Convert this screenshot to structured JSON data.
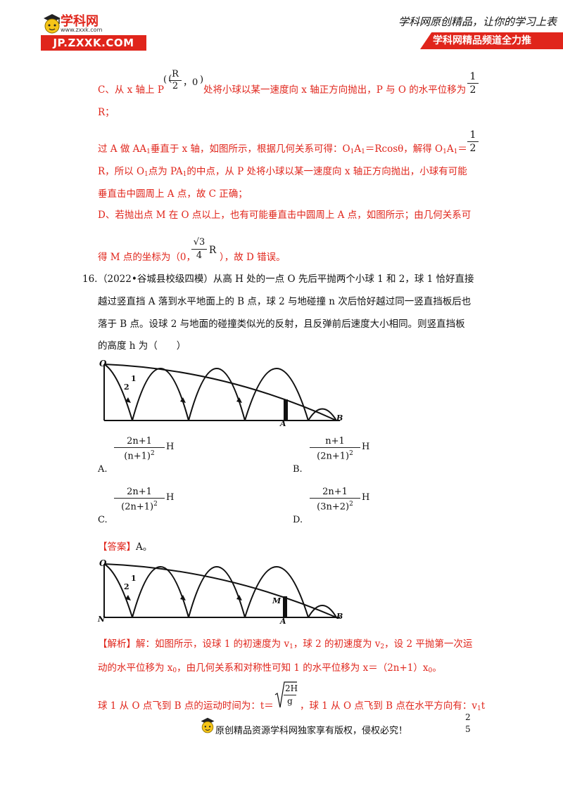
{
  "header": {
    "logo_name": "学科网",
    "logo_sub": "www.zxxk.com",
    "logo_url": "JP.ZXXK.COM",
    "slogan": "学科网原创精品，让你的学习上表",
    "banner": "学科网精品频道全力推"
  },
  "sectionC": {
    "line1_a": "C、从 x 轴上 P",
    "P_num": "R",
    "P_den": "2",
    "P_rest": "，0",
    "line1_b": "处将小球以某一速度向 x 轴正方向抛出，P 与 O 的水平位移为",
    "half_num": "1",
    "half_den": "2",
    "line2": "R；",
    "line3_a": "过 A 做 AA",
    "line3_b": "垂直于 x 轴，如图所示，根据几何关系可得：O",
    "line3_c": "A",
    "line3_d": "＝Rcosθ，解得 O",
    "line3_e": "A",
    "line3_f": "＝",
    "sub1": "1",
    "line4_a": "R，所以 O",
    "line4_b": "点为 PA",
    "line4_c": "的中点，从 P 处将小球以某一速度向 x 轴正方向抛出，小球有可能",
    "line5": "垂直击中圆周上 A 点，故 C 正确；"
  },
  "sectionD": {
    "line1": "D、若抛出点 M 在 O 点以上，也有可能垂直击中圆周上 A 点，如图所示；由几何关系可",
    "line2_a": "得 M 点的坐标为（0，",
    "sqrt_num": "√3",
    "sqrt_den": "4",
    "line2_R": "R",
    "line2_b": "），故 D 错误。"
  },
  "question": {
    "number": "16.",
    "line1": "（2022•谷城县校级四模）从高 H 处的一点 O 先后平抛两个小球 1 和 2，球 1 恰好直接",
    "line2": "越过竖直挡 A 落到水平地面上的 B 点，球 2 与地碰撞 n 次后恰好越过同一竖直挡板后也",
    "line3": "落于 B 点。设球 2 与地面的碰撞类似光的反射，且反弹前后速度大小相同。则竖直挡板",
    "line4": "的高度 h 为（　　）"
  },
  "figure1": {
    "label_O": "O",
    "label_1": "1",
    "label_2": "2",
    "label_A": "A",
    "label_B": "B"
  },
  "options": [
    {
      "letter": "A.",
      "num": "2n+1",
      "den": "(n+1)",
      "exp": "2",
      "var": "H"
    },
    {
      "letter": "B.",
      "num": "n+1",
      "den": "(2n+1)",
      "exp": "2",
      "var": "H"
    },
    {
      "letter": "C.",
      "num": "2n+1",
      "den": "(2n+1)",
      "exp": "2",
      "var": "H"
    },
    {
      "letter": "D.",
      "num": "2n+1",
      "den": "(3n+2)",
      "exp": "2",
      "var": "H"
    }
  ],
  "answer": {
    "tag": "【答案】",
    "value": "A。"
  },
  "figure2": {
    "label_O": "O",
    "label_1": "1",
    "label_2": "2",
    "label_M": "M",
    "label_A": "A",
    "label_B": "B",
    "label_N": "N"
  },
  "analysis": {
    "tag": "【解析】",
    "line1_a": "解：如图所示，设球 1 的初速度为 v",
    "line1_b": "，球 2 的初速度为 v",
    "line1_c": "，设 2 平抛第一次运",
    "sub2": "2",
    "sub0": "0",
    "line2_a": "动的水平位移为 x",
    "line2_b": "，由几何关系和对称性可知 1 的水平位移为 x＝（2n+1）x",
    "line2_c": "。",
    "line3_a": "球 1 从 O 点飞到 B 点的运动时间为：t＝",
    "sqrt_num": "2H",
    "sqrt_den": "g",
    "line3_b": "，球 1 从 O 点飞到 B 点在水平方向有：v",
    "line3_c": "t"
  },
  "footer": {
    "text": "原创精品资源学科网独家享有版权，侵权必究！",
    "page_top": "2",
    "page_bottom": "5"
  }
}
